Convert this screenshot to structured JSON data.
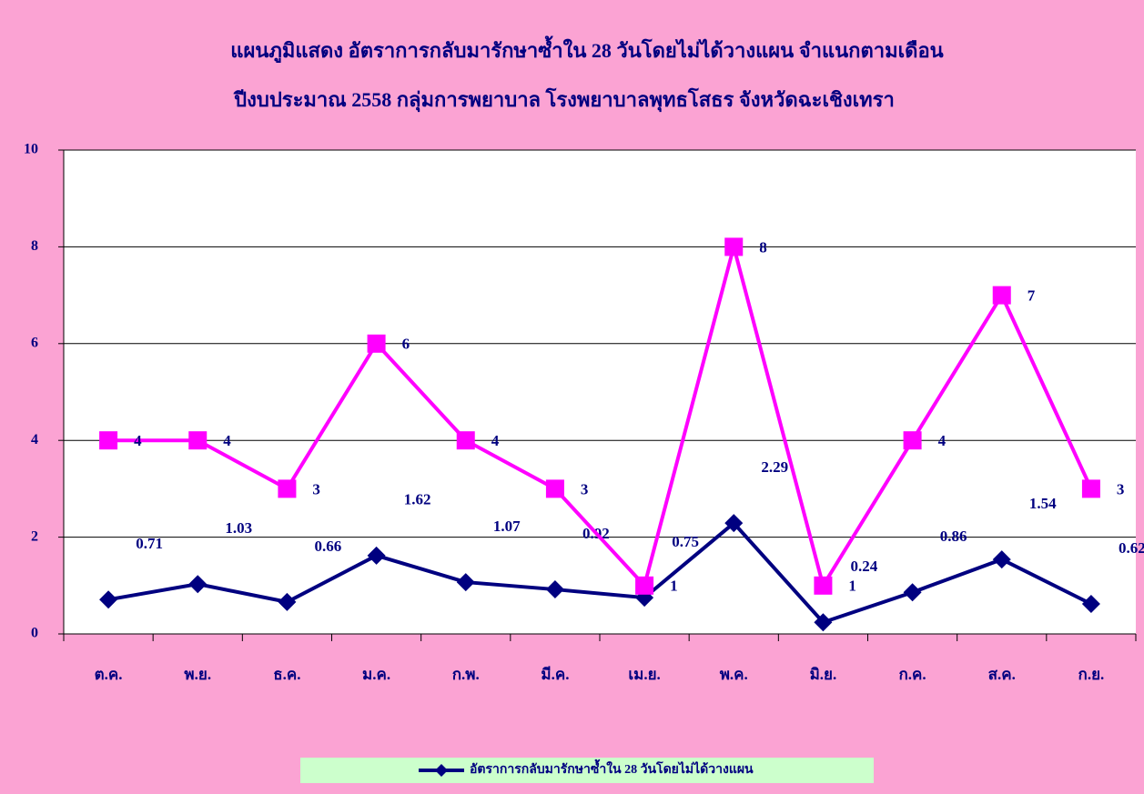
{
  "chart_data": {
    "type": "line",
    "title": "แผนภูมิแสดง อัตราการกลับมารักษาซ้ำใน 28 วันโดยไม่ได้วางแผน  จำแนกตามเดือน",
    "subtitle": "ปีงบประมาณ 2558   กลุ่มการพยาบาล โรงพยาบาลพุทธโสธร จังหวัดฉะเชิงเทรา",
    "categories": [
      "ต.ค.",
      "พ.ย.",
      "ธ.ค.",
      "ม.ค.",
      "ก.พ.",
      "มี.ค.",
      "เม.ย.",
      "พ.ค.",
      "มิ.ย.",
      "ก.ค.",
      "ส.ค.",
      "ก.ย."
    ],
    "series": [
      {
        "name": "อัตราการกลับมารักษาซ้ำใน 28 วันโดยไม่ได้วางแผน",
        "color": "#000080",
        "marker": "diamond",
        "values": [
          0.71,
          1.03,
          0.66,
          1.62,
          1.07,
          0.92,
          0.75,
          2.29,
          0.24,
          0.86,
          1.54,
          0.62
        ]
      },
      {
        "color": "#ff00ff",
        "marker": "square",
        "values": [
          4,
          4,
          3,
          6,
          4,
          3,
          1,
          8,
          1,
          4,
          7,
          3
        ]
      }
    ],
    "ylim": [
      0,
      10
    ],
    "yticks": [
      0,
      2,
      4,
      6,
      8,
      10
    ],
    "grid": true,
    "legend": "bottom"
  }
}
